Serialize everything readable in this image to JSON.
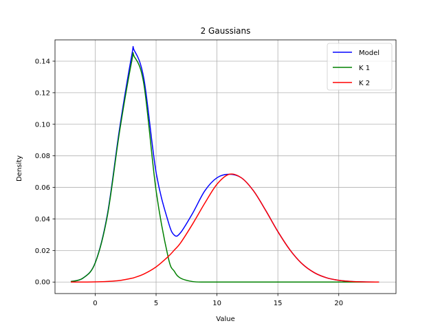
{
  "chart_data": {
    "type": "line",
    "title": "2 Gaussians",
    "xlabel": "Value",
    "ylabel": "Density",
    "xlim": [
      -3.3,
      24.7
    ],
    "ylim": [
      -0.0073,
      0.1535
    ],
    "xticks": [
      0,
      5,
      10,
      15,
      20
    ],
    "yticks": [
      0.0,
      0.02,
      0.04,
      0.06,
      0.08,
      0.1,
      0.12,
      0.14
    ],
    "ytick_labels": [
      "0.00",
      "0.02",
      "0.04",
      "0.06",
      "0.08",
      "0.10",
      "0.12",
      "0.14"
    ],
    "xtick_labels": [
      "0",
      "5",
      "10",
      "15",
      "20"
    ],
    "grid": true,
    "legend_position": "top-right",
    "x": [
      -2.0,
      -1.0,
      0.0,
      1.0,
      2.0,
      3.0,
      3.2,
      4.0,
      5.0,
      6.0,
      6.5,
      7.0,
      8.0,
      9.0,
      10.0,
      11.0,
      12.0,
      13.0,
      14.0,
      15.0,
      16.0,
      17.0,
      18.0,
      19.0,
      20.0,
      21.0,
      22.0,
      23.3
    ],
    "series": [
      {
        "name": "Model",
        "color": "#0000ff",
        "values": [
          0.0003,
          0.0025,
          0.0122,
          0.0428,
          0.0972,
          0.1436,
          0.1469,
          0.1288,
          0.0696,
          0.0382,
          0.0297,
          0.0312,
          0.0436,
          0.0578,
          0.0661,
          0.0683,
          0.0661,
          0.0578,
          0.0454,
          0.032,
          0.0203,
          0.0115,
          0.0059,
          0.0027,
          0.0011,
          0.0004,
          0.0001,
          0.0
        ]
      },
      {
        "name": "K 1",
        "color": "#008000",
        "values": [
          0.0003,
          0.0025,
          0.0121,
          0.042,
          0.0953,
          0.14,
          0.143,
          0.1253,
          0.058,
          0.0155,
          0.0068,
          0.0025,
          0.0003,
          0.0,
          0.0,
          0.0,
          0.0,
          0.0,
          0.0,
          0.0,
          0.0,
          0.0,
          0.0,
          0.0,
          0.0,
          0.0,
          0.0,
          0.0
        ]
      },
      {
        "name": "K 2",
        "color": "#ff0000",
        "values": [
          0.0,
          0.0,
          0.0001,
          0.0004,
          0.001,
          0.0024,
          0.0028,
          0.0051,
          0.0096,
          0.0162,
          0.0203,
          0.0247,
          0.0368,
          0.05,
          0.062,
          0.0683,
          0.0661,
          0.0578,
          0.0454,
          0.032,
          0.0203,
          0.0115,
          0.0059,
          0.0027,
          0.0011,
          0.0004,
          0.0001,
          0.0
        ]
      }
    ]
  }
}
